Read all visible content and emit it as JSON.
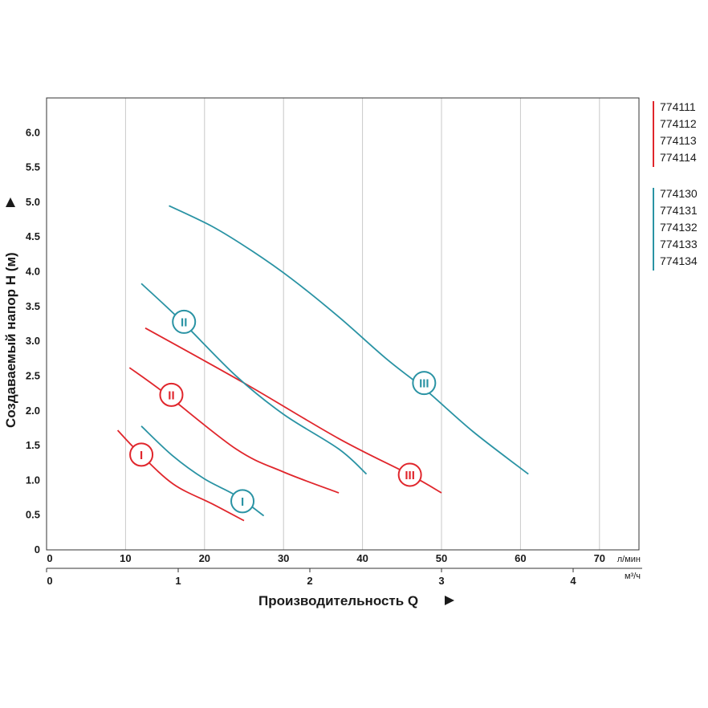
{
  "chart_data": {
    "type": "line",
    "xlabel": "Производительность Q",
    "ylabel": "Создаваемый напор H (м)",
    "x_axis": {
      "unit": "л/мин",
      "ticks": [
        "0",
        "10",
        "20",
        "30",
        "40",
        "50",
        "60",
        "70"
      ],
      "range": [
        0,
        75
      ]
    },
    "x2_axis": {
      "unit": "м³/ч",
      "ticks": [
        "0",
        "1",
        "2",
        "3",
        "4"
      ],
      "range": [
        0,
        4.5
      ]
    },
    "y_axis": {
      "ticks": [
        "0",
        "0.5",
        "1.0",
        "1.5",
        "2.0",
        "2.5",
        "3.0",
        "3.5",
        "4.0",
        "4.5",
        "5.0",
        "5.5",
        "6.0"
      ],
      "range": [
        0,
        6.5
      ]
    },
    "grid": "vertical",
    "legend": [
      {
        "color": "#e0262c",
        "labels": [
          "774111",
          "774112",
          "774113",
          "774114"
        ]
      },
      {
        "color": "#2a93a4",
        "labels": [
          "774130",
          "774131",
          "774132",
          "774133",
          "774134"
        ]
      }
    ],
    "series": [
      {
        "group": "red",
        "speed": "I",
        "color": "#e0262c",
        "points": [
          [
            9,
            1.72
          ],
          [
            11.5,
            1.42
          ],
          [
            16,
            0.95
          ],
          [
            21,
            0.66
          ],
          [
            25,
            0.42
          ]
        ],
        "marker_at": [
          12,
          1.37
        ]
      },
      {
        "group": "red",
        "speed": "II",
        "color": "#e0262c",
        "points": [
          [
            10.5,
            2.62
          ],
          [
            15,
            2.25
          ],
          [
            24,
            1.45
          ],
          [
            30,
            1.12
          ],
          [
            37,
            0.82
          ]
        ],
        "marker_at": [
          15.8,
          2.23
        ]
      },
      {
        "group": "red",
        "speed": "III",
        "color": "#e0262c",
        "points": [
          [
            12.5,
            3.19
          ],
          [
            25,
            2.4
          ],
          [
            37,
            1.6
          ],
          [
            46,
            1.08
          ],
          [
            50,
            0.82
          ]
        ],
        "marker_at": [
          46,
          1.08
        ]
      },
      {
        "group": "blue",
        "speed": "I",
        "color": "#2a93a4",
        "points": [
          [
            12,
            1.78
          ],
          [
            16,
            1.35
          ],
          [
            20,
            1.02
          ],
          [
            24,
            0.78
          ],
          [
            27.5,
            0.49
          ]
        ],
        "marker_at": [
          24.8,
          0.7
        ]
      },
      {
        "group": "blue",
        "speed": "II",
        "color": "#2a93a4",
        "points": [
          [
            12,
            3.83
          ],
          [
            17,
            3.3
          ],
          [
            24,
            2.5
          ],
          [
            30,
            1.95
          ],
          [
            37,
            1.45
          ],
          [
            40.5,
            1.09
          ]
        ],
        "marker_at": [
          17.4,
          3.28
        ]
      },
      {
        "group": "blue",
        "speed": "III",
        "color": "#2a93a4",
        "points": [
          [
            15.5,
            4.95
          ],
          [
            21,
            4.65
          ],
          [
            26,
            4.3
          ],
          [
            31,
            3.9
          ],
          [
            37,
            3.35
          ],
          [
            43,
            2.75
          ],
          [
            48,
            2.3
          ],
          [
            54,
            1.7
          ],
          [
            61,
            1.09
          ]
        ],
        "marker_at": [
          47.8,
          2.4
        ]
      }
    ]
  }
}
